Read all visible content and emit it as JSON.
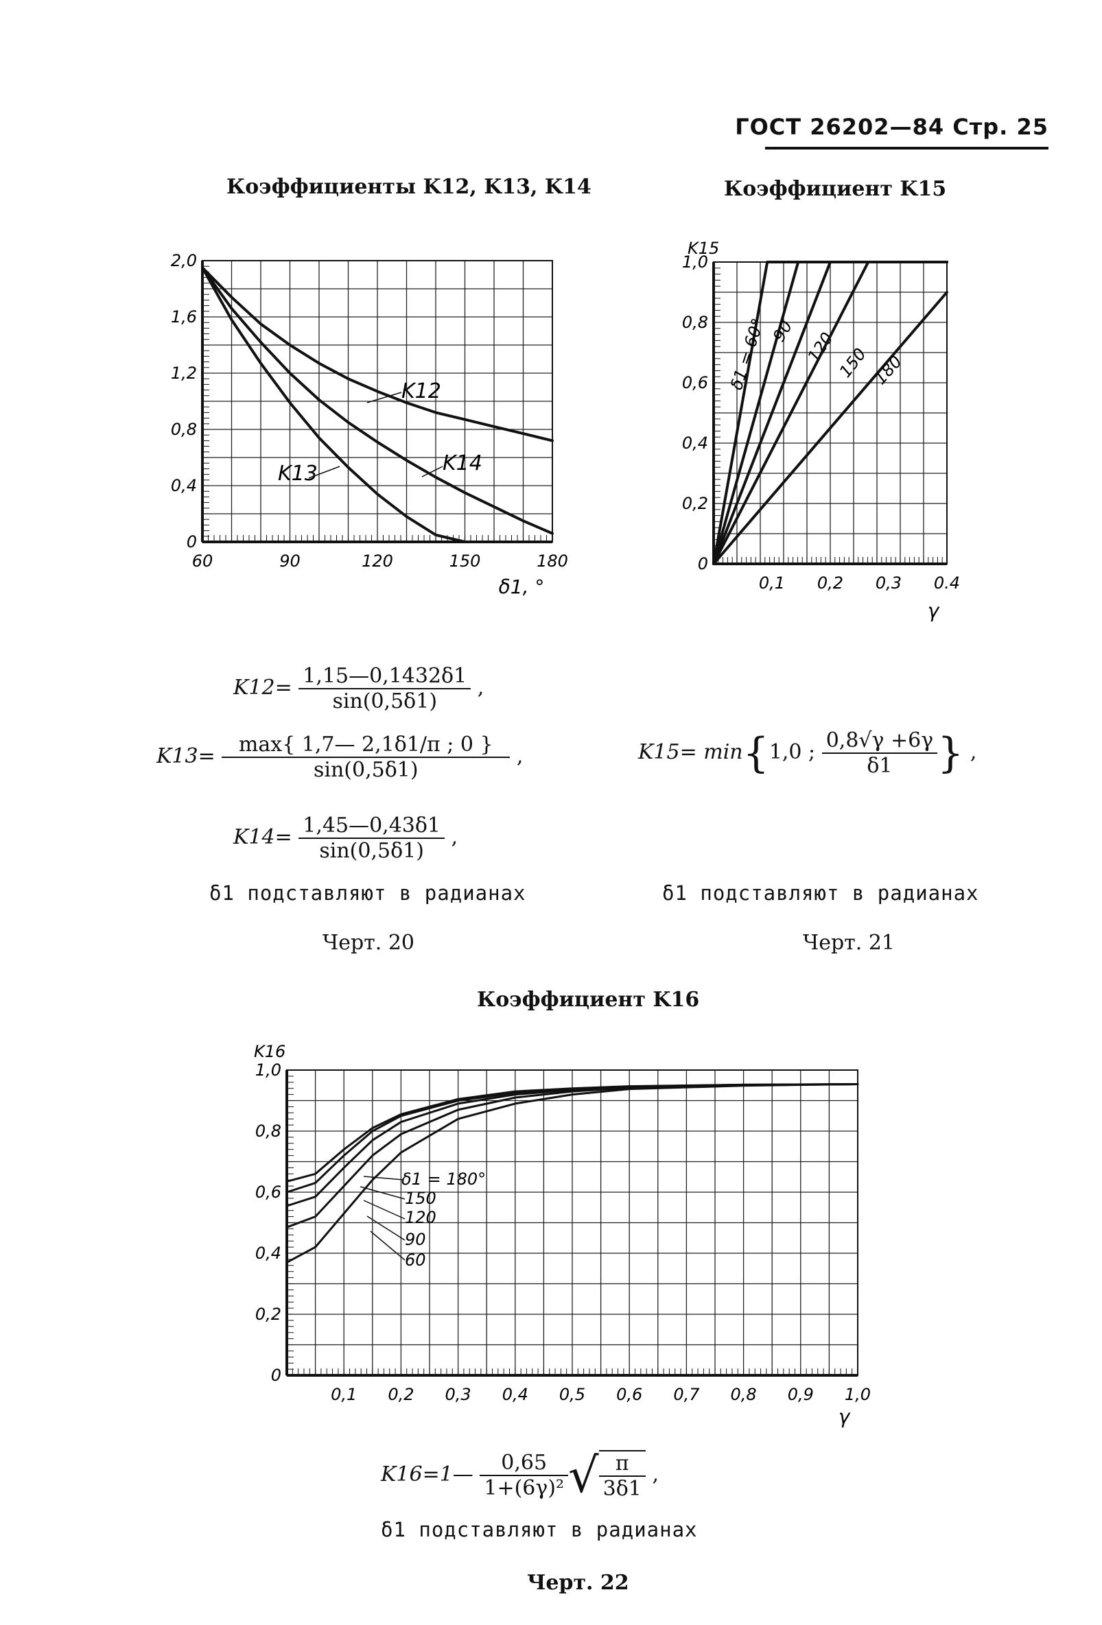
{
  "header": {
    "text": "ГОСТ 26202—84 Стр. 25"
  },
  "chart_data": [
    {
      "id": "chart20",
      "type": "line",
      "title": "Коэффициенты K12, K13, K14",
      "xlabel": "δ1, °",
      "ylabel": "",
      "xlim": [
        60,
        180
      ],
      "ylim": [
        0,
        2.0
      ],
      "xticks": [
        "60",
        "90",
        "120",
        "150",
        "180"
      ],
      "yticks": [
        "0",
        "0,4",
        "0,8",
        "1,2",
        "1,6",
        "2,0"
      ],
      "grid": true,
      "series": [
        {
          "name": "K12",
          "x": [
            60,
            70,
            80,
            90,
            100,
            110,
            120,
            130,
            140,
            150,
            160,
            170,
            180
          ],
          "y": [
            1.95,
            1.74,
            1.55,
            1.4,
            1.27,
            1.16,
            1.07,
            0.99,
            0.92,
            0.87,
            0.82,
            0.77,
            0.72
          ]
        },
        {
          "name": "K13",
          "x": [
            60,
            70,
            80,
            90,
            100,
            110,
            120,
            130,
            140,
            150
          ],
          "y": [
            1.95,
            1.58,
            1.27,
            0.99,
            0.74,
            0.53,
            0.34,
            0.18,
            0.05,
            0.0
          ]
        },
        {
          "name": "K14",
          "x": [
            60,
            70,
            80,
            90,
            100,
            110,
            120,
            130,
            140,
            150,
            160,
            170,
            180
          ],
          "y": [
            1.95,
            1.66,
            1.42,
            1.2,
            1.01,
            0.85,
            0.71,
            0.58,
            0.46,
            0.35,
            0.25,
            0.15,
            0.06
          ]
        }
      ],
      "formula": {
        "k12_lhs": "K12=",
        "k12_num": "1,15—0,1432δ1",
        "k12_den": "sin(0,5δ1)",
        "k13_lhs": "K13=",
        "k13_num": "max{ 1,7— 2,1δ1/π ; 0 }",
        "k13_den": "sin(0,5δ1)",
        "k14_lhs": "K14=",
        "k14_num": "1,45—0,43δ1",
        "k14_den": "sin(0,5δ1)"
      },
      "note": "δ1 подставляют в радианах",
      "caption": "Черт. 20"
    },
    {
      "id": "chart21",
      "type": "line",
      "title": "Коэффициент K15",
      "xlabel": "γ",
      "ylabel": "K15",
      "xlim": [
        0,
        0.4
      ],
      "ylim": [
        0,
        1.0
      ],
      "xticks": [
        "0,1",
        "0,2",
        "0,3",
        "0.4"
      ],
      "yticks": [
        "0",
        "0,2",
        "0,4",
        "0,6",
        "0,8",
        "1,0"
      ],
      "grid": true,
      "series": [
        {
          "name": "δ1 = 60°",
          "x": [
            0,
            0.092,
            0.4
          ],
          "y": [
            0,
            1.0,
            1.0
          ]
        },
        {
          "name": "90",
          "x": [
            0,
            0.145,
            0.4
          ],
          "y": [
            0,
            1.0,
            1.0
          ]
        },
        {
          "name": "120",
          "x": [
            0,
            0.2,
            0.4
          ],
          "y": [
            0,
            1.0,
            1.0
          ]
        },
        {
          "name": "150",
          "x": [
            0,
            0.265,
            0.4
          ],
          "y": [
            0,
            1.0,
            1.0
          ]
        },
        {
          "name": "180",
          "x": [
            0,
            0.4
          ],
          "y": [
            0,
            0.9
          ]
        }
      ],
      "formula": {
        "lhs": "K15= min",
        "body": "1,0 ;",
        "num": "0,8√γ +6γ",
        "den": "δ1"
      },
      "note": "δ1 подставляют в радианах",
      "caption": "Черт. 21"
    },
    {
      "id": "chart22",
      "type": "line",
      "title": "Коэффициент K16",
      "xlabel": "γ",
      "ylabel": "K16",
      "xlim": [
        0,
        1.0
      ],
      "ylim": [
        0,
        1.0
      ],
      "xticks": [
        "0,1",
        "0,2",
        "0,3",
        "0,4",
        "0,5",
        "0,6",
        "0,7",
        "0,8",
        "0,9",
        "1,0"
      ],
      "yticks": [
        "0",
        "0,2",
        "0,4",
        "0,6",
        "0,8",
        "1,0"
      ],
      "grid": true,
      "series": [
        {
          "name": "δ1 = 180°",
          "x": [
            0,
            0.05,
            0.1,
            0.15,
            0.2,
            0.3,
            0.4,
            0.5,
            0.6,
            0.8,
            1.0
          ],
          "y": [
            0.635,
            0.66,
            0.74,
            0.81,
            0.855,
            0.905,
            0.93,
            0.94,
            0.947,
            0.952,
            0.954
          ]
        },
        {
          "name": "150",
          "x": [
            0,
            0.05,
            0.1,
            0.15,
            0.2,
            0.3,
            0.4,
            0.5,
            0.6,
            0.8,
            1.0
          ],
          "y": [
            0.6,
            0.63,
            0.72,
            0.8,
            0.85,
            0.9,
            0.925,
            0.938,
            0.946,
            0.952,
            0.954
          ]
        },
        {
          "name": "120",
          "x": [
            0,
            0.05,
            0.1,
            0.15,
            0.2,
            0.3,
            0.4,
            0.5,
            0.6,
            0.8,
            1.0
          ],
          "y": [
            0.555,
            0.585,
            0.68,
            0.77,
            0.83,
            0.89,
            0.92,
            0.935,
            0.944,
            0.951,
            0.954
          ]
        },
        {
          "name": "90",
          "x": [
            0,
            0.05,
            0.1,
            0.15,
            0.2,
            0.3,
            0.4,
            0.5,
            0.6,
            0.8,
            1.0
          ],
          "y": [
            0.485,
            0.52,
            0.62,
            0.72,
            0.79,
            0.87,
            0.91,
            0.93,
            0.942,
            0.95,
            0.954
          ]
        },
        {
          "name": "60",
          "x": [
            0,
            0.05,
            0.1,
            0.15,
            0.2,
            0.3,
            0.4,
            0.5,
            0.6,
            0.8,
            1.0
          ],
          "y": [
            0.37,
            0.42,
            0.53,
            0.64,
            0.73,
            0.84,
            0.89,
            0.92,
            0.938,
            0.949,
            0.954
          ]
        }
      ],
      "formula": {
        "lhs": "K16=1—",
        "num": "0,65",
        "den": "1+(6γ)²",
        "root_num": "π",
        "root_den": "3δ1",
        "tail": ","
      },
      "note": "δ1 подставляют в радианах",
      "caption": "Черт. 22"
    }
  ]
}
